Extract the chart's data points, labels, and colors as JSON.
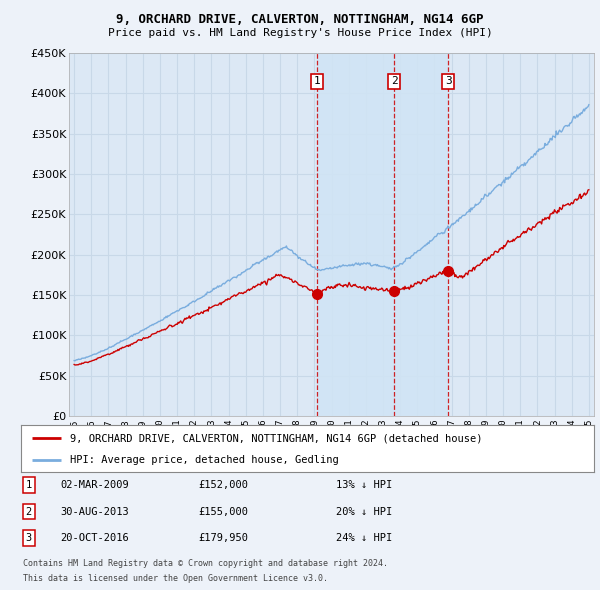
{
  "title1": "9, ORCHARD DRIVE, CALVERTON, NOTTINGHAM, NG14 6GP",
  "title2": "Price paid vs. HM Land Registry's House Price Index (HPI)",
  "legend_red": "9, ORCHARD DRIVE, CALVERTON, NOTTINGHAM, NG14 6GP (detached house)",
  "legend_blue": "HPI: Average price, detached house, Gedling",
  "transactions": [
    {
      "num": 1,
      "date": "02-MAR-2009",
      "price": 152000,
      "pct": "13%",
      "dir": "↓",
      "x": 2009.17
    },
    {
      "num": 2,
      "date": "30-AUG-2013",
      "price": 155000,
      "pct": "20%",
      "dir": "↓",
      "x": 2013.66
    },
    {
      "num": 3,
      "date": "20-OCT-2016",
      "price": 179950,
      "pct": "24%",
      "dir": "↓",
      "x": 2016.8
    }
  ],
  "footnote1": "Contains HM Land Registry data © Crown copyright and database right 2024.",
  "footnote2": "This data is licensed under the Open Government Licence v3.0.",
  "ylim": [
    0,
    450000
  ],
  "yticks": [
    0,
    50000,
    100000,
    150000,
    200000,
    250000,
    300000,
    350000,
    400000,
    450000
  ],
  "xlim_start": 1994.7,
  "xlim_end": 2025.3,
  "background_color": "#edf2f9",
  "plot_bg": "#dce8f5",
  "shade_color": "#d0e4f5",
  "red_color": "#cc0000",
  "blue_color": "#7aadde",
  "grid_color": "#c8d8e8"
}
